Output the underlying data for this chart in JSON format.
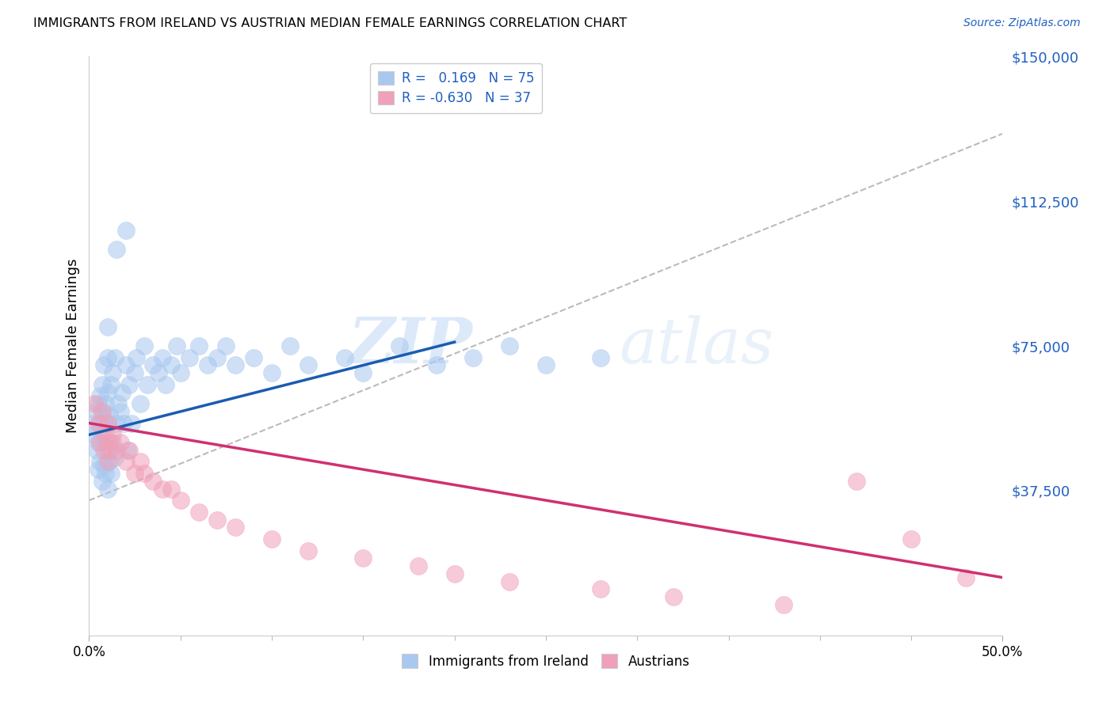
{
  "title": "IMMIGRANTS FROM IRELAND VS AUSTRIAN MEDIAN FEMALE EARNINGS CORRELATION CHART",
  "source": "Source: ZipAtlas.com",
  "ylabel": "Median Female Earnings",
  "xmin": 0.0,
  "xmax": 0.5,
  "ymin": 0,
  "ymax": 150000,
  "yticks": [
    0,
    37500,
    75000,
    112500,
    150000
  ],
  "ytick_labels": [
    "",
    "$37,500",
    "$75,000",
    "$112,500",
    "$150,000"
  ],
  "blue_color": "#A8C8F0",
  "pink_color": "#F0A0B8",
  "blue_line_color": "#1A5CB0",
  "pink_line_color": "#D03070",
  "gray_line_color": "#BBBBBB",
  "background_color": "#FFFFFF",
  "legend_text_color": "#2060C0",
  "source_color": "#2060C0",
  "ytick_color": "#2060C0",
  "blue_scatter_x": [
    0.002,
    0.003,
    0.004,
    0.004,
    0.005,
    0.005,
    0.005,
    0.006,
    0.006,
    0.006,
    0.007,
    0.007,
    0.007,
    0.007,
    0.008,
    0.008,
    0.008,
    0.009,
    0.009,
    0.009,
    0.01,
    0.01,
    0.01,
    0.01,
    0.01,
    0.01,
    0.011,
    0.011,
    0.012,
    0.012,
    0.013,
    0.013,
    0.014,
    0.014,
    0.015,
    0.016,
    0.017,
    0.018,
    0.019,
    0.02,
    0.021,
    0.022,
    0.023,
    0.025,
    0.026,
    0.028,
    0.03,
    0.032,
    0.035,
    0.038,
    0.04,
    0.042,
    0.045,
    0.048,
    0.05,
    0.055,
    0.06,
    0.065,
    0.07,
    0.075,
    0.08,
    0.09,
    0.1,
    0.11,
    0.12,
    0.14,
    0.15,
    0.17,
    0.19,
    0.21,
    0.23,
    0.25,
    0.28,
    0.02,
    0.015
  ],
  "blue_scatter_y": [
    55000,
    52000,
    48000,
    58000,
    43000,
    60000,
    50000,
    45000,
    55000,
    62000,
    40000,
    52000,
    58000,
    65000,
    44000,
    56000,
    70000,
    42000,
    50000,
    60000,
    38000,
    48000,
    55000,
    63000,
    72000,
    80000,
    45000,
    57000,
    42000,
    65000,
    50000,
    68000,
    46000,
    72000,
    55000,
    60000,
    58000,
    63000,
    55000,
    70000,
    48000,
    65000,
    55000,
    68000,
    72000,
    60000,
    75000,
    65000,
    70000,
    68000,
    72000,
    65000,
    70000,
    75000,
    68000,
    72000,
    75000,
    70000,
    72000,
    75000,
    70000,
    72000,
    68000,
    75000,
    70000,
    72000,
    68000,
    75000,
    70000,
    72000,
    75000,
    70000,
    72000,
    105000,
    100000
  ],
  "pink_scatter_x": [
    0.003,
    0.005,
    0.006,
    0.007,
    0.008,
    0.009,
    0.01,
    0.01,
    0.011,
    0.012,
    0.013,
    0.015,
    0.017,
    0.02,
    0.022,
    0.025,
    0.028,
    0.03,
    0.035,
    0.04,
    0.045,
    0.05,
    0.06,
    0.07,
    0.08,
    0.1,
    0.12,
    0.15,
    0.18,
    0.2,
    0.23,
    0.28,
    0.32,
    0.38,
    0.42,
    0.45,
    0.48
  ],
  "pink_scatter_y": [
    60000,
    55000,
    50000,
    58000,
    48000,
    52000,
    55000,
    45000,
    50000,
    48000,
    52000,
    48000,
    50000,
    45000,
    48000,
    42000,
    45000,
    42000,
    40000,
    38000,
    38000,
    35000,
    32000,
    30000,
    28000,
    25000,
    22000,
    20000,
    18000,
    16000,
    14000,
    12000,
    10000,
    8000,
    40000,
    25000,
    15000
  ],
  "blue_line_x": [
    0.0,
    0.2
  ],
  "blue_line_y": [
    52000,
    76000
  ],
  "pink_line_x": [
    0.0,
    0.5
  ],
  "pink_line_y": [
    55000,
    15000
  ],
  "gray_line_x": [
    0.0,
    0.5
  ],
  "gray_line_y": [
    35000,
    130000
  ]
}
